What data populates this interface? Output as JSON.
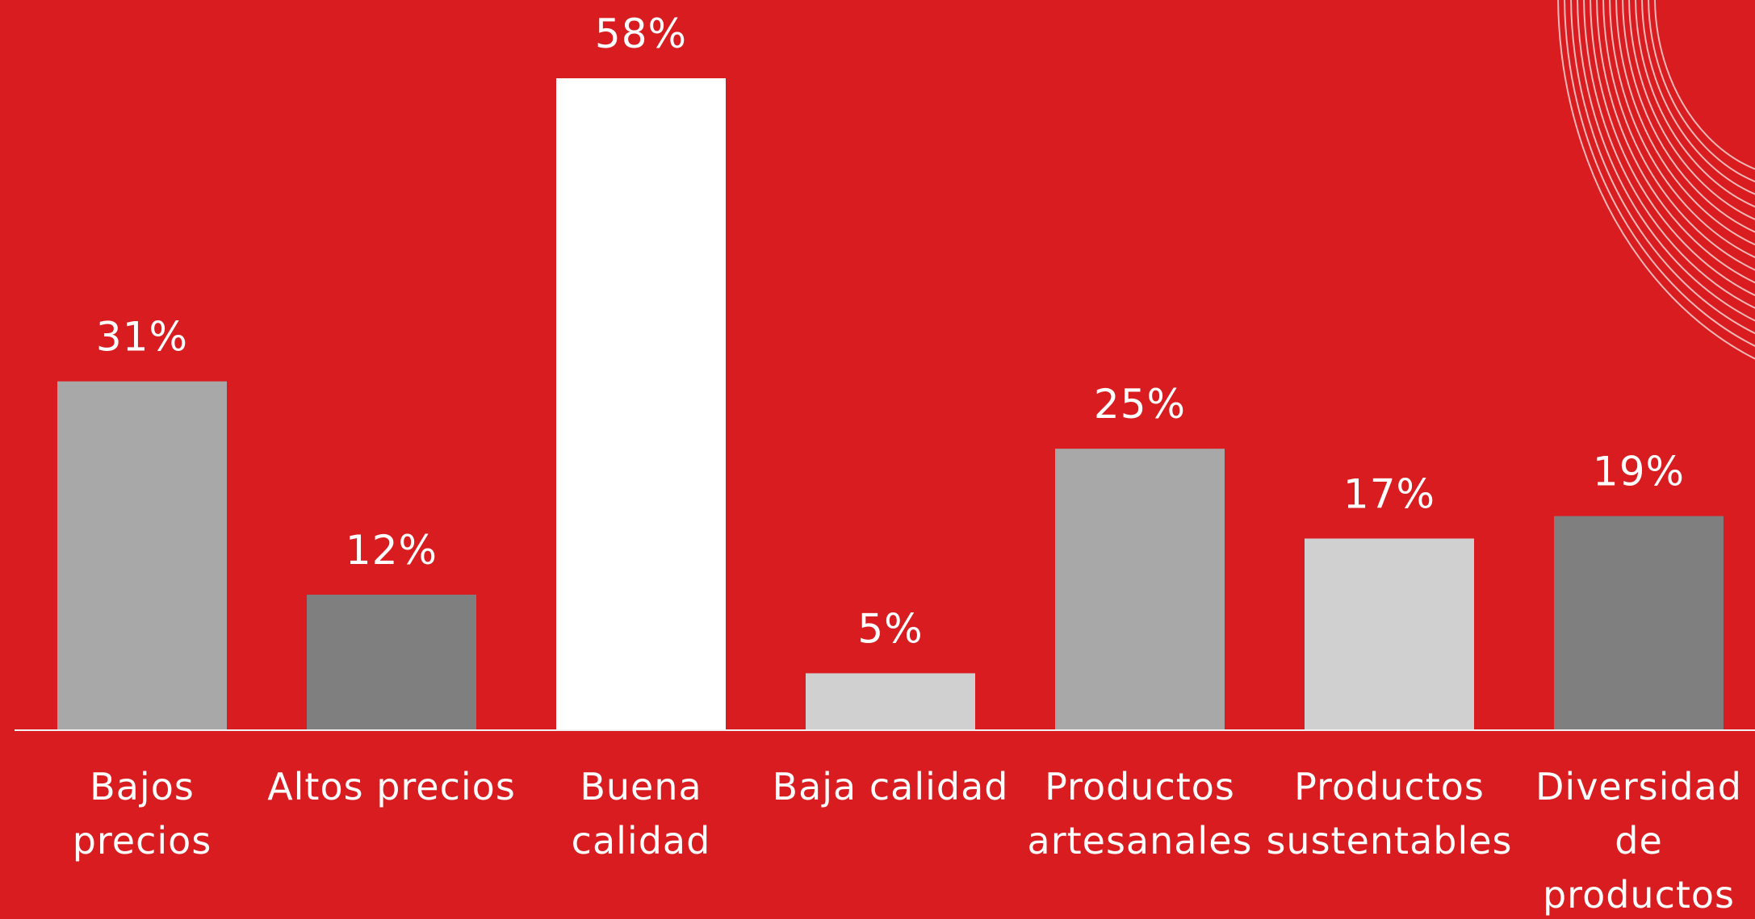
{
  "chart_data": {
    "type": "bar",
    "categories": [
      [
        "Bajos",
        "precios"
      ],
      [
        "Altos precios"
      ],
      [
        "Buena",
        "calidad"
      ],
      [
        "Baja calidad"
      ],
      [
        "Productos",
        "artesanales"
      ],
      [
        "Productos",
        "sustentables"
      ],
      [
        "Diversidad",
        "de",
        "productos"
      ]
    ],
    "values": [
      31,
      12,
      58,
      5,
      25,
      17,
      19
    ],
    "data_labels": [
      "31%",
      "12%",
      "58%",
      "5%",
      "25%",
      "17%",
      "19%"
    ],
    "unit": "%",
    "ylim": [
      0,
      58
    ],
    "bar_colors": [
      "#a8a8a8",
      "#7f7f7f",
      "#ffffff",
      "#d0d0d0",
      "#a8a8a8",
      "#d0d0d0",
      "#7f7f7f"
    ],
    "grid": false,
    "legend": "none",
    "title": "",
    "xlabel": "",
    "ylabel": ""
  },
  "colors": {
    "background": "#d91c1f",
    "text": "#ffffff",
    "baseline": "#f2f2f2",
    "decoration": "#f4d2d2"
  },
  "decoration": {
    "icon": "concentric-arcs-decoration-icon"
  }
}
